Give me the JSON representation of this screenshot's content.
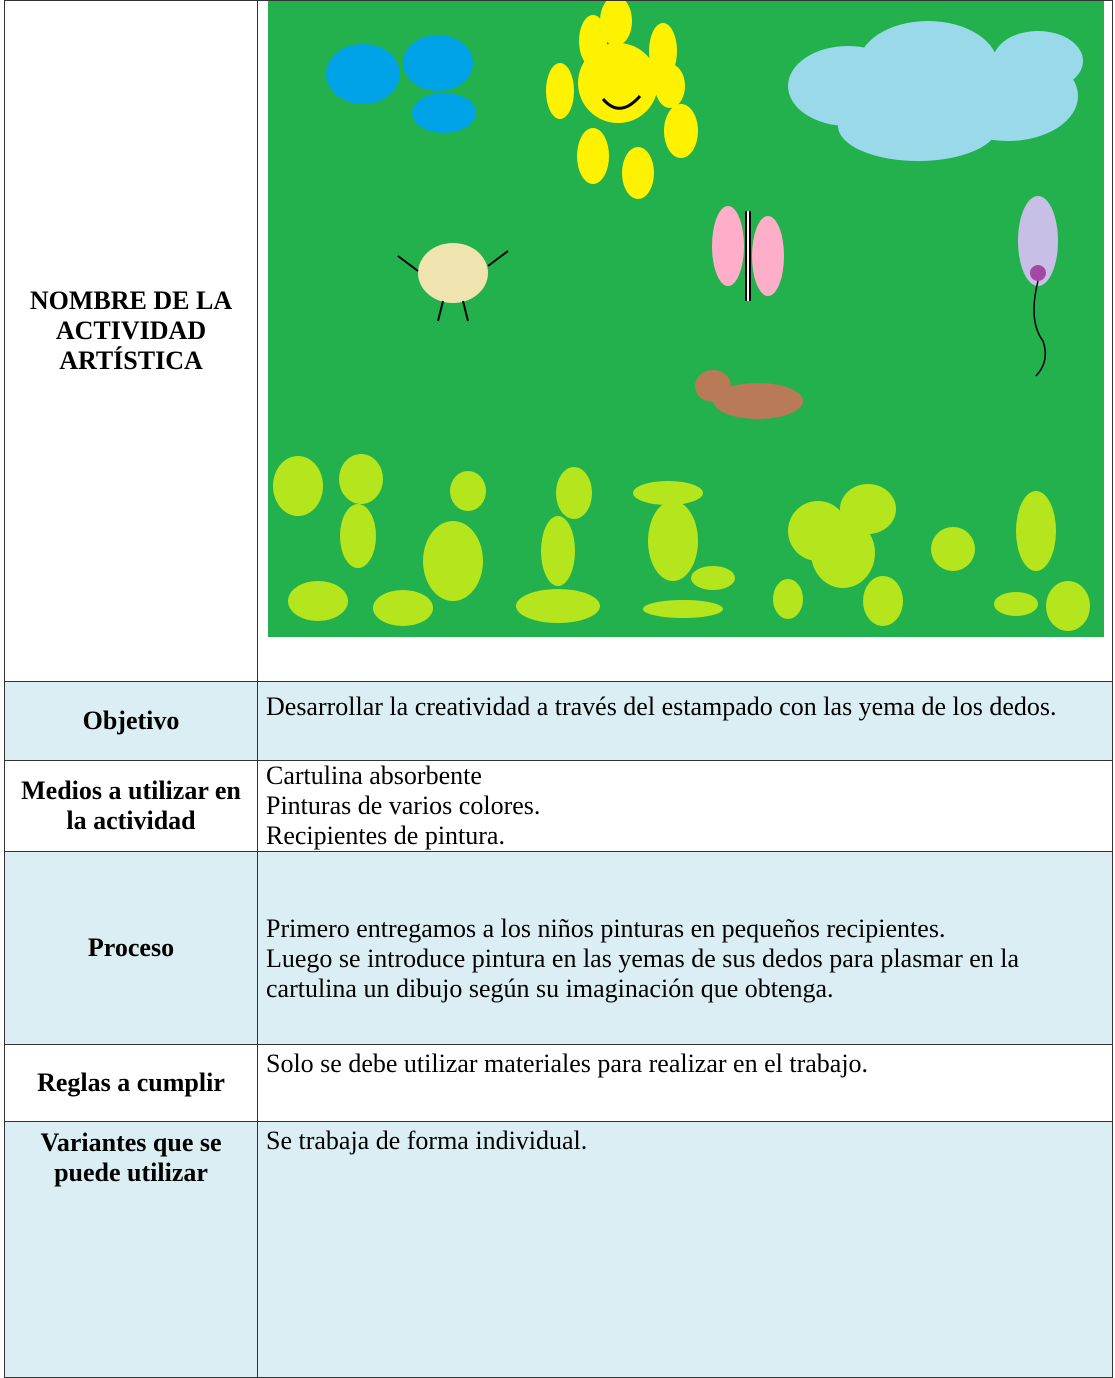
{
  "header": {
    "label": "NOMBRE DE LA ACTIVIDAD ARTÍSTICA"
  },
  "rows": [
    {
      "label": "Objetivo",
      "lines": [
        "Desarrollar la creatividad a través del estampado con las yema de los dedos."
      ]
    },
    {
      "label": "Medios a utilizar en la actividad",
      "lines": [
        "Cartulina absorbente",
        "Pinturas de varios colores.",
        "Recipientes de pintura."
      ]
    },
    {
      "label": "Proceso",
      "lines": [
        "Primero entregamos a los niños pinturas en pequeños recipientes.",
        "Luego se introduce pintura en las yemas de sus dedos para plasmar en la cartulina un dibujo según su imaginación que obtenga."
      ]
    },
    {
      "label": "Reglas a cumplir",
      "lines": [
        "Solo se debe utilizar materiales para realizar en el trabajo."
      ]
    },
    {
      "label": "Variantes que se puede utilizar",
      "lines": [
        "Se trabaja de forma individual."
      ]
    }
  ]
}
